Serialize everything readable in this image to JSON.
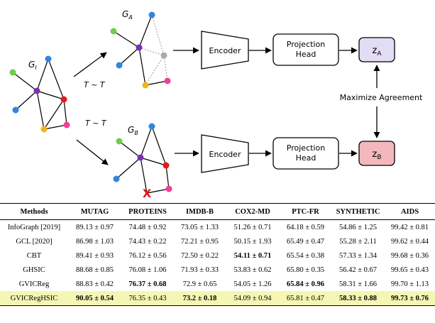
{
  "diagram": {
    "graph_labels": {
      "original": {
        "main": "G",
        "sub": "I"
      },
      "view_a": {
        "main": "G",
        "sub": "A"
      },
      "view_b": {
        "main": "G",
        "sub": "B"
      }
    },
    "transform_a": "T ~ T",
    "transform_b": "T ~ T",
    "encoder_label": "Encoder",
    "projection_line1": "Projection",
    "projection_line2": "Head",
    "z_a": {
      "main": "z",
      "sub": "A"
    },
    "z_b": {
      "main": "z",
      "sub": "B"
    },
    "maximize_label": "Maximize Agreement",
    "drop_mark": "X",
    "colors": {
      "z_a_fill": "#e3dcf5",
      "z_b_fill": "#f4b8bc",
      "node_green": "#6ccf4a",
      "node_purple": "#7b2fb3",
      "node_blue": "#2f86e0",
      "node_red": "#e8171c",
      "node_yellow": "#efb51a",
      "node_pink": "#ef3e9b",
      "node_gray": "#aaaaaa",
      "drop_mark": "#e8171c"
    }
  },
  "table": {
    "headers": [
      "Methods",
      "MUTAG",
      "PROTEINS",
      "IMDB-B",
      "COX2-MD",
      "PTC-FR",
      "SYNTHETIC",
      "AIDS"
    ],
    "rows": [
      {
        "method": "InfoGraph [2019]",
        "cells": [
          {
            "v": "89.13 ± 0.97"
          },
          {
            "v": "74.48 ± 0.92"
          },
          {
            "v": "73.05 ± 1.33"
          },
          {
            "v": "51.26 ± 0.71"
          },
          {
            "v": "64.18 ± 0.59"
          },
          {
            "v": "54.86 ± 1.25"
          },
          {
            "v": "99.42 ± 0.81"
          }
        ]
      },
      {
        "method": "GCL [2020]",
        "cells": [
          {
            "v": "86.98 ± 1.03"
          },
          {
            "v": "74.43 ± 0.22"
          },
          {
            "v": "72.21 ± 0.95"
          },
          {
            "v": "50.15 ± 1.93"
          },
          {
            "v": "65.49 ± 0.47"
          },
          {
            "v": "55.28 ± 2.11"
          },
          {
            "v": "99.62 ± 0.44"
          }
        ]
      },
      {
        "method": "CBT",
        "cells": [
          {
            "v": "89.41 ± 0.93"
          },
          {
            "v": "76.12 ± 0.56"
          },
          {
            "v": "72.50 ± 0.22"
          },
          {
            "v": "54.11 ± 0.71",
            "bold": true
          },
          {
            "v": "65.54 ± 0.38"
          },
          {
            "v": "57.33 ± 1.34"
          },
          {
            "v": "99.68 ± 0.36"
          }
        ]
      },
      {
        "method": "GHSIC",
        "cells": [
          {
            "v": "88.68 ± 0.85"
          },
          {
            "v": "76.08 ± 1.06"
          },
          {
            "v": "71.93 ± 0.33"
          },
          {
            "v": "53.83 ± 0.62"
          },
          {
            "v": "65.80 ± 0.35"
          },
          {
            "v": "56.42 ± 0.67"
          },
          {
            "v": "99.65 ± 0.43"
          }
        ]
      },
      {
        "method": "GVICReg",
        "cells": [
          {
            "v": "88.83 ± 0.42"
          },
          {
            "v": "76.37 ± 0.68",
            "bold": true
          },
          {
            "v": "72.9 ± 0.65"
          },
          {
            "v": "54.05 ± 1.26"
          },
          {
            "v": "65.84 ± 0.96",
            "bold": true
          },
          {
            "v": "58.31 ± 1.66"
          },
          {
            "v": "99.70 ± 1.13"
          }
        ]
      },
      {
        "method": "GVICRegHSIC",
        "highlight": true,
        "cells": [
          {
            "v": "90.05 ± 0.54",
            "bold": true
          },
          {
            "v": "76.35 ± 0.43"
          },
          {
            "v": "73.2 ± 0.18",
            "bold": true
          },
          {
            "v": "54.09 ± 0.94"
          },
          {
            "v": "65.81 ± 0.47"
          },
          {
            "v": "58.33 ± 0.88",
            "bold": true
          },
          {
            "v": "99.73 ± 0.76",
            "bold": true
          }
        ]
      }
    ]
  }
}
